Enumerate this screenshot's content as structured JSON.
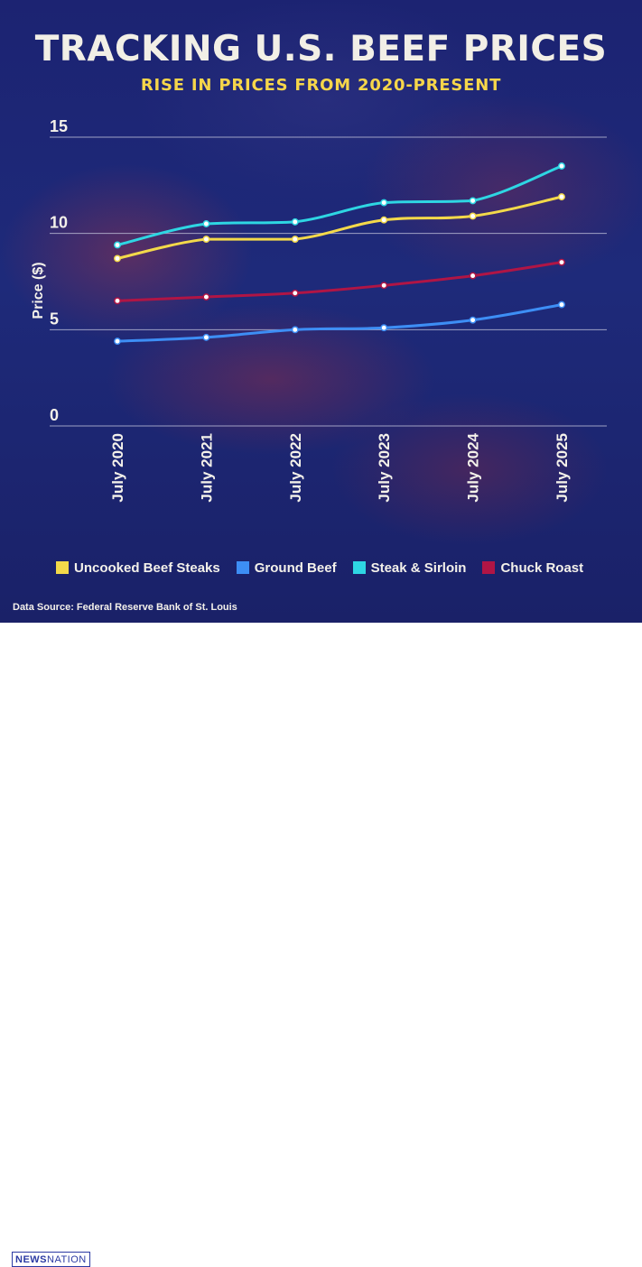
{
  "header": {
    "title": "TRACKING U.S. BEEF PRICES",
    "subtitle": "RISE IN PRICES FROM 2020-PRESENT"
  },
  "chart_data": {
    "type": "line",
    "x": [
      "July 2020",
      "July 2021",
      "July 2022",
      "July 2023",
      "July 2024",
      "July 2025"
    ],
    "ylabel": "Price ($)",
    "xlabel": "",
    "ylim": [
      0,
      15
    ],
    "yticks": [
      0,
      5,
      10,
      15
    ],
    "grid": true,
    "legend_position": "bottom",
    "series": [
      {
        "name": "Uncooked Beef Steaks",
        "color": "#f3d94a",
        "values": [
          8.7,
          9.7,
          9.7,
          10.7,
          10.9,
          11.9
        ]
      },
      {
        "name": "Ground Beef",
        "color": "#3d8ef5",
        "values": [
          4.4,
          4.6,
          5.0,
          5.1,
          5.5,
          6.3
        ]
      },
      {
        "name": "Steak & Sirloin",
        "color": "#2ed6e3",
        "values": [
          9.4,
          10.5,
          10.6,
          11.6,
          11.7,
          13.5
        ]
      },
      {
        "name": "Chuck Roast",
        "color": "#b01545",
        "values": [
          6.5,
          6.7,
          6.9,
          7.3,
          7.8,
          8.5
        ]
      }
    ]
  },
  "footer": {
    "source": "Data Source: Federal Reserve Bank of St. Louis",
    "logo_bold": "NEWS",
    "logo_light": "NATION"
  }
}
